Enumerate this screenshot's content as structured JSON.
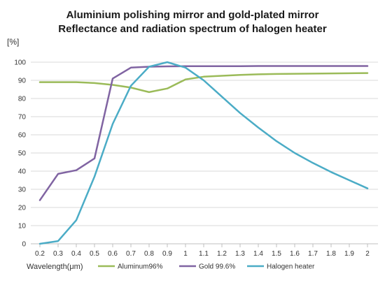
{
  "chart_data": {
    "type": "line",
    "title": "Aluminium polishing mirror and gold-plated mirror",
    "subtitle": "Reflectance and radiation spectrum of halogen heater",
    "ylabel": "[%]",
    "xlabel": "Wavelength(μm)",
    "categories": [
      "0.2",
      "0.3",
      "0.4",
      "0.5",
      "0.6",
      "0.7",
      "0.8",
      "0.9",
      "1",
      "1.1",
      "1.2",
      "1.3",
      "1.4",
      "1.5",
      "1.6",
      "1.7",
      "1.8",
      "1.9",
      "2"
    ],
    "ylim": [
      0,
      100
    ],
    "yticks": [
      "0",
      "10",
      "20",
      "30",
      "40",
      "50",
      "60",
      "70",
      "80",
      "90",
      "100"
    ],
    "grid": true,
    "legend_position": "bottom",
    "series": [
      {
        "name": "Aluminum96%",
        "color": "#9bbb59",
        "values": [
          89,
          89,
          89,
          88.5,
          87.5,
          86,
          83.5,
          85.5,
          90.5,
          92,
          92.5,
          93,
          93.3,
          93.5,
          93.6,
          93.7,
          93.8,
          93.9,
          94
        ]
      },
      {
        "name": "Gold 99.6%",
        "color": "#8064a2",
        "values": [
          24,
          38.5,
          40.5,
          47,
          91,
          97,
          97.5,
          97.7,
          97.8,
          97.8,
          97.8,
          97.8,
          97.9,
          97.9,
          97.9,
          97.9,
          97.9,
          97.9,
          97.9
        ]
      },
      {
        "name": "Halogen heater",
        "color": "#4bacc6",
        "values": [
          0,
          1.5,
          13,
          37,
          66,
          87,
          97.5,
          100,
          97,
          90,
          81,
          72,
          64,
          56.5,
          50,
          44.5,
          39.5,
          35,
          30.5
        ]
      }
    ]
  }
}
